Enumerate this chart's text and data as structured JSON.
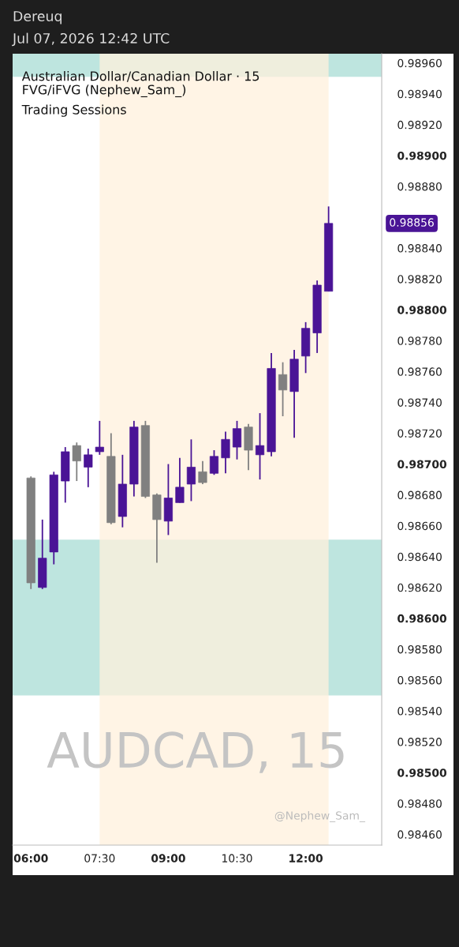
{
  "chart_data": {
    "type": "candlestick",
    "title": "Australian Dollar/Canadian Dollar · 15",
    "x": [
      6.0,
      6.25,
      6.5,
      6.75,
      7.0,
      7.25,
      7.5,
      7.75,
      8.0,
      8.25,
      8.5,
      8.75,
      9.0,
      9.25,
      9.5,
      9.75,
      10.0,
      10.25,
      10.5,
      10.75,
      11.0,
      11.25,
      11.5,
      11.75,
      12.0,
      12.25,
      12.5
    ],
    "ohlc": [
      [
        0.98691,
        0.98692,
        0.98619,
        0.98623
      ],
      [
        0.9862,
        0.98664,
        0.98619,
        0.98639
      ],
      [
        0.98643,
        0.98695,
        0.98635,
        0.98693
      ],
      [
        0.98689,
        0.98711,
        0.98675,
        0.98708
      ],
      [
        0.98712,
        0.98714,
        0.98689,
        0.98702
      ],
      [
        0.98698,
        0.9871,
        0.98685,
        0.98706
      ],
      [
        0.98708,
        0.98728,
        0.98706,
        0.98711
      ],
      [
        0.98705,
        0.9872,
        0.98661,
        0.98662
      ],
      [
        0.98666,
        0.98706,
        0.98659,
        0.98687
      ],
      [
        0.98687,
        0.98728,
        0.98679,
        0.98724
      ],
      [
        0.98725,
        0.98728,
        0.98678,
        0.98679
      ],
      [
        0.9868,
        0.98681,
        0.98636,
        0.98664
      ],
      [
        0.98663,
        0.987,
        0.98654,
        0.98678
      ],
      [
        0.98675,
        0.98704,
        0.98675,
        0.98685
      ],
      [
        0.98687,
        0.98716,
        0.98676,
        0.98698
      ],
      [
        0.98695,
        0.98702,
        0.98687,
        0.98688
      ],
      [
        0.98694,
        0.98709,
        0.98693,
        0.98705
      ],
      [
        0.98704,
        0.98721,
        0.98694,
        0.98716
      ],
      [
        0.98711,
        0.98728,
        0.98703,
        0.98723
      ],
      [
        0.98724,
        0.98726,
        0.98696,
        0.98709
      ],
      [
        0.98706,
        0.98733,
        0.9869,
        0.98712
      ],
      [
        0.98708,
        0.98772,
        0.98705,
        0.98762
      ],
      [
        0.98758,
        0.98766,
        0.98731,
        0.98748
      ],
      [
        0.98747,
        0.98774,
        0.98717,
        0.98768
      ],
      [
        0.9877,
        0.98792,
        0.98759,
        0.98788
      ],
      [
        0.98785,
        0.98819,
        0.98772,
        0.98816
      ],
      [
        0.98812,
        0.98867,
        0.98812,
        0.98856
      ]
    ],
    "colors": [
      "#808080",
      "#4a1496",
      "#4a1496",
      "#4a1496",
      "#808080",
      "#4a1496",
      "#4a1496",
      "#808080",
      "#4a1496",
      "#4a1496",
      "#808080",
      "#808080",
      "#4a1496",
      "#4a1496",
      "#4a1496",
      "#808080",
      "#4a1496",
      "#4a1496",
      "#4a1496",
      "#808080",
      "#4a1496",
      "#4a1496",
      "#808080",
      "#4a1496",
      "#4a1496",
      "#4a1496",
      "#4a1496"
    ],
    "xlim": [
      5.6,
      13.66
    ],
    "xticks": [
      {
        "value": 6,
        "label": "06:00"
      },
      {
        "value": 7.5,
        "label": "07:30"
      },
      {
        "value": 9,
        "label": "09:00"
      },
      {
        "value": 10.5,
        "label": "10:30"
      },
      {
        "value": 12,
        "label": "12:00"
      }
    ],
    "ylim": [
      0.98453,
      0.98966
    ],
    "yticks": [
      {
        "value": 0.9846,
        "label": "0.98460"
      },
      {
        "value": 0.9848,
        "label": "0.98480"
      },
      {
        "value": 0.985,
        "label": "0.98500"
      },
      {
        "value": 0.9852,
        "label": "0.98520"
      },
      {
        "value": 0.9854,
        "label": "0.98540"
      },
      {
        "value": 0.9856,
        "label": "0.98560"
      },
      {
        "value": 0.9858,
        "label": "0.98580"
      },
      {
        "value": 0.986,
        "label": "0.98600"
      },
      {
        "value": 0.9862,
        "label": "0.98620"
      },
      {
        "value": 0.9864,
        "label": "0.98640"
      },
      {
        "value": 0.9866,
        "label": "0.98660"
      },
      {
        "value": 0.9868,
        "label": "0.98680"
      },
      {
        "value": 0.987,
        "label": "0.98700"
      },
      {
        "value": 0.9872,
        "label": "0.98720"
      },
      {
        "value": 0.9874,
        "label": "0.98740"
      },
      {
        "value": 0.9876,
        "label": "0.98760"
      },
      {
        "value": 0.9878,
        "label": "0.98780"
      },
      {
        "value": 0.988,
        "label": "0.98800"
      },
      {
        "value": 0.9882,
        "label": "0.98820"
      },
      {
        "value": 0.9884,
        "label": "0.98840"
      },
      {
        "value": 0.9888,
        "label": "0.98880"
      },
      {
        "value": 0.989,
        "label": "0.98900"
      },
      {
        "value": 0.9892,
        "label": "0.98920"
      },
      {
        "value": 0.9894,
        "label": "0.98940"
      },
      {
        "value": 0.9896,
        "label": "0.98960"
      }
    ],
    "bands": [
      {
        "axis": "y",
        "from": 0.9855,
        "to": 0.98651,
        "color": "#a8dcd4"
      },
      {
        "axis": "y",
        "from": 0.98951,
        "to": 0.98966,
        "color": "#a8dcd4"
      },
      {
        "axis": "x",
        "from": 7.5,
        "to": 12.5,
        "color": "#fff0dc"
      }
    ],
    "annotations": [
      "Dereuq",
      "Jul 07, 2026 12:42 UTC",
      "FVG/iFVG (Nephew_Sam_)",
      "Trading Sessions",
      "AUDCAD, 15",
      "@Nephew_Sam_",
      "0.98856"
    ],
    "grid": false,
    "legend": false
  }
}
